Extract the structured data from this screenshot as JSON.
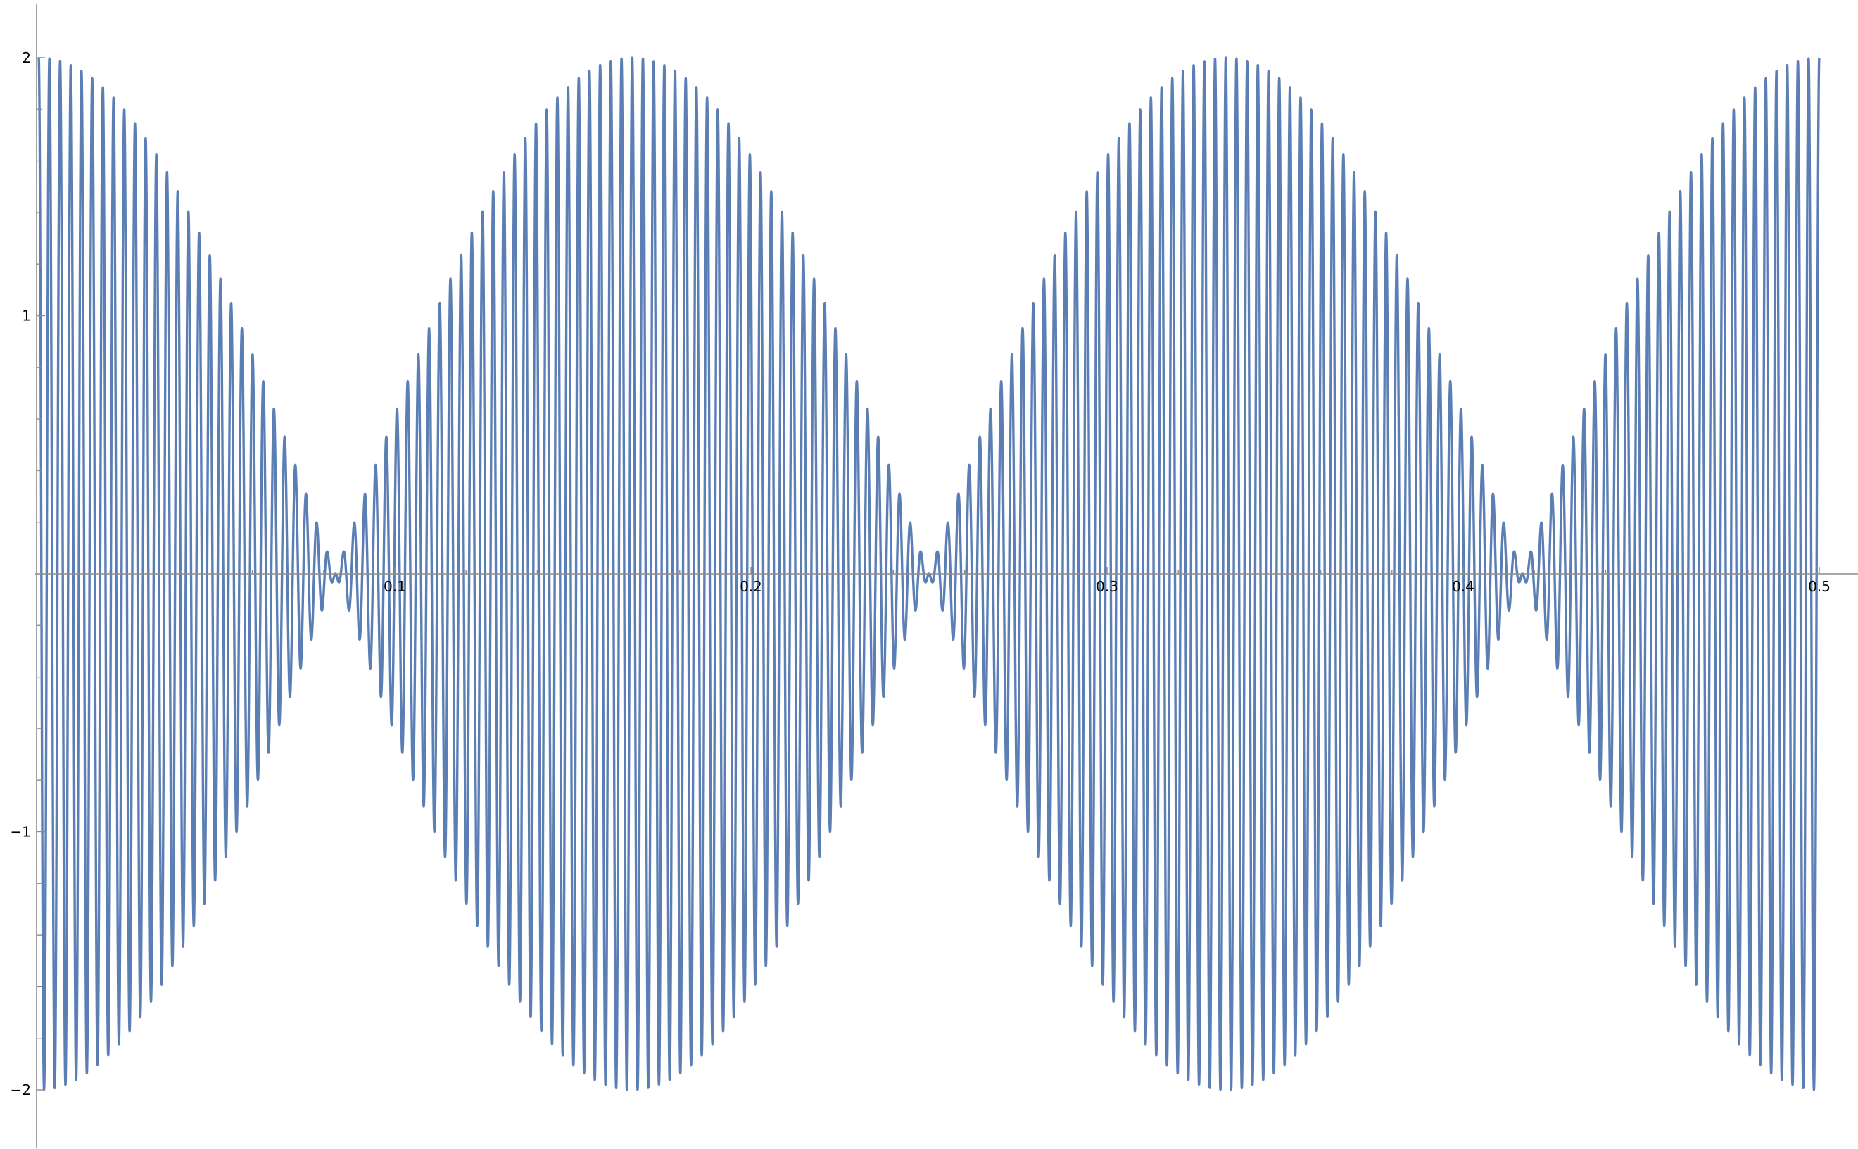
{
  "chart_data": {
    "type": "line",
    "title": "",
    "xlabel": "",
    "ylabel": "",
    "xlim": [
      0,
      0.5
    ],
    "ylim": [
      -2,
      2
    ],
    "x_ticks": [
      {
        "value": 0.1,
        "label": "0.1"
      },
      {
        "value": 0.2,
        "label": "0.2"
      },
      {
        "value": 0.3,
        "label": "0.3"
      },
      {
        "value": 0.4,
        "label": "0.4"
      },
      {
        "value": 0.5,
        "label": "0.5"
      }
    ],
    "y_ticks": [
      {
        "value": 2,
        "label": "2"
      },
      {
        "value": 1,
        "label": "1"
      },
      {
        "value": -1,
        "label": "−1"
      },
      {
        "value": -2,
        "label": "−2"
      }
    ],
    "grid": false,
    "legend": "none",
    "series": [
      {
        "color": "#5b7fb5",
        "formula": "2*cos(2*pi*3*x)*cos(2*pi*333*x)",
        "description_envelope_zeros": [
          0.0833,
          0.25,
          0.4167
        ],
        "envelope_peaks": [
          0,
          0.1667,
          0.3333,
          0.5
        ],
        "carrier_cycles_over_range": 166
      }
    ],
    "colors": {
      "line": "#5b7fb5",
      "axis": "#8c8c8c"
    }
  }
}
